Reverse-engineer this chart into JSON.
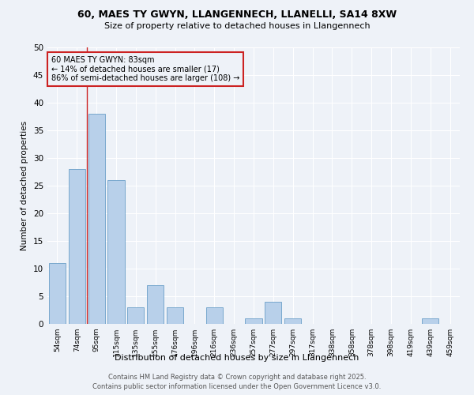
{
  "title1": "60, MAES TY GWYN, LLANGENNECH, LLANELLI, SA14 8XW",
  "title2": "Size of property relative to detached houses in Llangennech",
  "xlabel": "Distribution of detached houses by size in Llangennech",
  "ylabel": "Number of detached properties",
  "categories": [
    "54sqm",
    "74sqm",
    "95sqm",
    "115sqm",
    "135sqm",
    "155sqm",
    "176sqm",
    "196sqm",
    "216sqm",
    "236sqm",
    "257sqm",
    "277sqm",
    "297sqm",
    "317sqm",
    "338sqm",
    "358sqm",
    "378sqm",
    "398sqm",
    "419sqm",
    "439sqm",
    "459sqm"
  ],
  "values": [
    11,
    28,
    38,
    26,
    3,
    7,
    3,
    0,
    3,
    0,
    1,
    4,
    1,
    0,
    0,
    0,
    0,
    0,
    0,
    1,
    0
  ],
  "bar_color": "#b8d0ea",
  "bar_edge_color": "#6a9fc8",
  "vline_x_index": 1.5,
  "vline_color": "#cc2222",
  "annotation_text": "60 MAES TY GWYN: 83sqm\n← 14% of detached houses are smaller (17)\n86% of semi-detached houses are larger (108) →",
  "bg_color": "#eef2f8",
  "grid_color": "#ffffff",
  "footer_line1": "Contains HM Land Registry data © Crown copyright and database right 2025.",
  "footer_line2": "Contains public sector information licensed under the Open Government Licence v3.0.",
  "ylim": [
    0,
    50
  ],
  "yticks": [
    0,
    5,
    10,
    15,
    20,
    25,
    30,
    35,
    40,
    45,
    50
  ]
}
